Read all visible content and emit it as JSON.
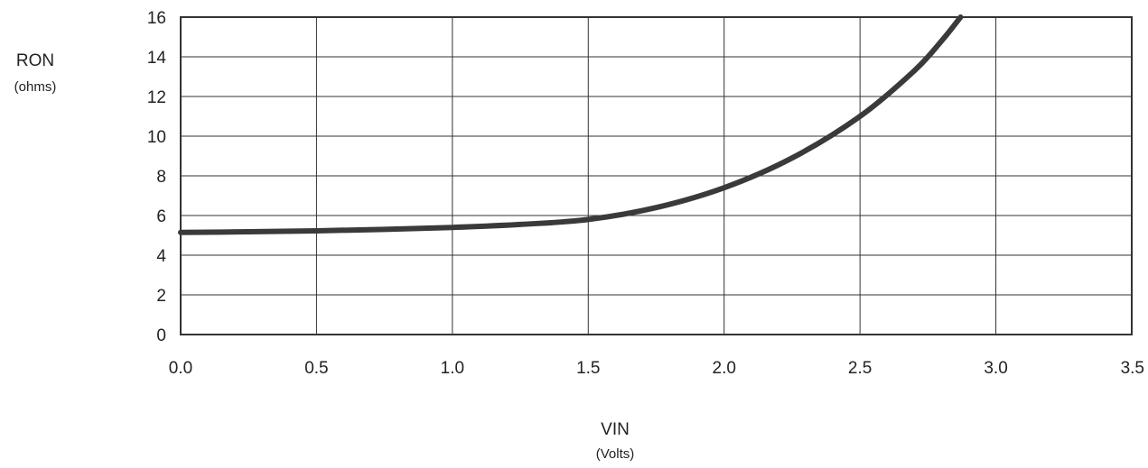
{
  "chart_data": {
    "type": "line",
    "ylabel": "RON",
    "ylabel_unit": "(ohms)",
    "xlabel": "VIN",
    "xlabel_unit": "(Volts)",
    "xlim": [
      0.0,
      3.5
    ],
    "ylim": [
      0,
      16
    ],
    "x_ticks": [
      "0.0",
      "0.5",
      "1.0",
      "1.5",
      "2.0",
      "2.5",
      "3.0",
      "3.5"
    ],
    "y_ticks": [
      "0",
      "2",
      "4",
      "6",
      "8",
      "10",
      "12",
      "14",
      "16"
    ],
    "grid": true,
    "series": [
      {
        "color": "#3a3a3a",
        "x": [
          0.0,
          0.25,
          0.5,
          0.75,
          1.0,
          1.25,
          1.5,
          1.75,
          2.0,
          2.25,
          2.5,
          2.7,
          2.8,
          2.87
        ],
        "y": [
          5.15,
          5.18,
          5.23,
          5.3,
          5.4,
          5.55,
          5.8,
          6.4,
          7.4,
          8.9,
          11.0,
          13.3,
          14.8,
          16.0
        ]
      }
    ]
  }
}
